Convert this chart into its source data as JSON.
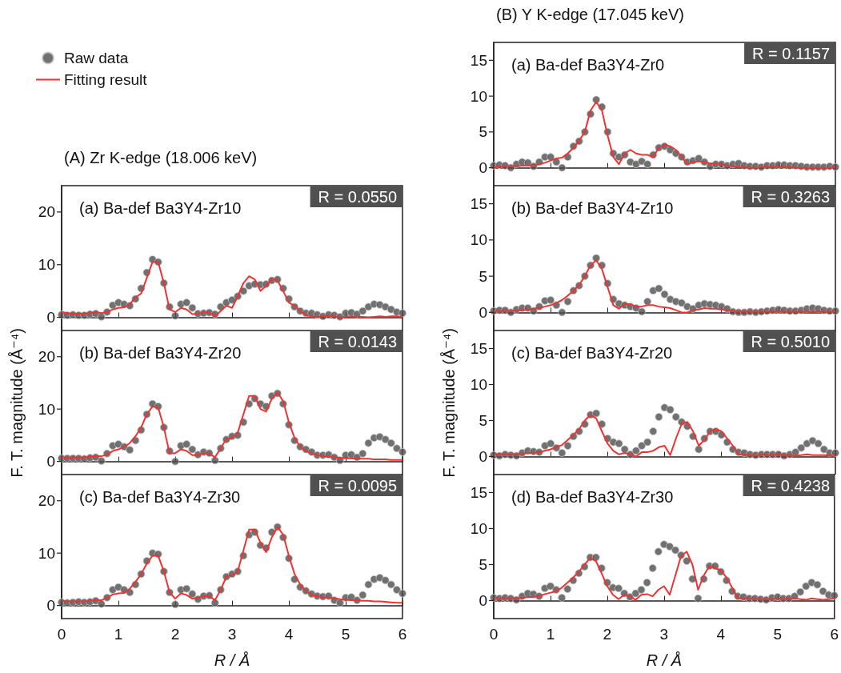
{
  "chart_data": [
    {
      "type": "line",
      "title": "(A) Zr K-edge (18.006 keV)",
      "legend": "top left",
      "tick_labels": "y",
      "annotations": [
        "(a) Ba-def Ba3Y4-Zr10",
        "R = 0.0550"
      ],
      "xlim": [
        0,
        6
      ],
      "xticks": [
        0,
        1,
        2,
        3,
        4,
        5,
        6
      ],
      "ylim": [
        -2.5,
        25
      ],
      "yticks": [
        0,
        10,
        20
      ],
      "x": [
        0,
        0.1,
        0.2,
        0.3,
        0.4,
        0.5,
        0.6,
        0.7,
        0.8,
        0.9,
        1,
        1.1,
        1.2,
        1.3,
        1.4,
        1.5,
        1.6,
        1.7,
        1.8,
        1.9,
        2,
        2.1,
        2.2,
        2.3,
        2.4,
        2.5,
        2.6,
        2.7,
        2.8,
        2.9,
        3,
        3.1,
        3.2,
        3.3,
        3.4,
        3.5,
        3.6,
        3.7,
        3.8,
        3.9,
        4,
        4.1,
        4.2,
        4.3,
        4.4,
        4.5,
        4.6,
        4.7,
        4.8,
        4.9,
        5,
        5.1,
        5.2,
        5.3,
        5.4,
        5.5,
        5.6,
        5.7,
        5.8,
        5.9,
        6
      ],
      "series": [
        {
          "name": "Raw data",
          "type": "scatter",
          "marker": "circle",
          "color": "#4d4d4d",
          "values": [
            0.5,
            0.4,
            0.5,
            0.4,
            0.4,
            0.6,
            0.7,
            0.1,
            1,
            2.3,
            2.8,
            2.5,
            2.2,
            3.5,
            5.5,
            8.5,
            11,
            10.5,
            6.5,
            2,
            0.3,
            2.5,
            2.8,
            1.8,
            0.7,
            0.8,
            0.9,
            0.6,
            2,
            2.8,
            3.3,
            4,
            5,
            6,
            6.3,
            6.2,
            6.3,
            7,
            7.2,
            5.5,
            3.5,
            2,
            1.2,
            0.8,
            0.8,
            0.5,
            0.2,
            0.5,
            0.4,
            0.1,
            0.8,
            0.9,
            0.6,
            1.2,
            2,
            2.5,
            2.4,
            2,
            1.5,
            1,
            0.8
          ]
        },
        {
          "name": "Fitting result",
          "type": "line",
          "color": "#f03232",
          "values": [
            1,
            0.8,
            0.6,
            0.7,
            0.7,
            0.8,
            1,
            0.8,
            1,
            1.5,
            1.8,
            1.9,
            2.5,
            3.8,
            4.5,
            7.5,
            10.5,
            10.5,
            6.5,
            1.5,
            1,
            1.8,
            1.5,
            0.6,
            0.7,
            0.9,
            0.9,
            0.2,
            1.2,
            2.2,
            1.8,
            4,
            6.5,
            7.8,
            7.2,
            5,
            6,
            7.3,
            7,
            5,
            2.8,
            2.2,
            1.2,
            0.4,
            0.2,
            0.1,
            0.2,
            0.3,
            0.2,
            0,
            0.1,
            0.2,
            0.1,
            0.1,
            0,
            0.1,
            0.2,
            0.1,
            0.2,
            0.2,
            0.1
          ]
        }
      ]
    },
    {
      "type": "line",
      "ylabel": "F. T. magnitude (Å⁻⁴)",
      "tick_labels": "y",
      "annotations": [
        "(b) Ba-def Ba3Y4-Zr20",
        "R = 0.0143"
      ],
      "xlim": [
        0,
        6
      ],
      "xticks": [
        0,
        1,
        2,
        3,
        4,
        5,
        6
      ],
      "ylim": [
        -2.5,
        25
      ],
      "yticks": [
        0,
        10,
        20
      ],
      "x": [
        0,
        0.1,
        0.2,
        0.3,
        0.4,
        0.5,
        0.6,
        0.7,
        0.8,
        0.9,
        1,
        1.1,
        1.2,
        1.3,
        1.4,
        1.5,
        1.6,
        1.7,
        1.8,
        1.9,
        2,
        2.1,
        2.2,
        2.3,
        2.4,
        2.5,
        2.6,
        2.7,
        2.8,
        2.9,
        3,
        3.1,
        3.2,
        3.3,
        3.4,
        3.5,
        3.6,
        3.7,
        3.8,
        3.9,
        4,
        4.1,
        4.2,
        4.3,
        4.4,
        4.5,
        4.6,
        4.7,
        4.8,
        4.9,
        5,
        5.1,
        5.2,
        5.3,
        5.4,
        5.5,
        5.6,
        5.7,
        5.8,
        5.9,
        6
      ],
      "series": [
        {
          "type": "scatter",
          "color": "#4d4d4d",
          "marker": "circle",
          "values": [
            0.6,
            0.6,
            0.6,
            0.6,
            0.5,
            0.7,
            0.8,
            0.1,
            1.5,
            3,
            3.3,
            2.8,
            2.2,
            4,
            6,
            9,
            11,
            10.5,
            6.5,
            2,
            0,
            3,
            3.3,
            2.3,
            1.3,
            1.8,
            1.6,
            0.2,
            2.5,
            4.2,
            4.8,
            5,
            7.5,
            11,
            12,
            11,
            10.5,
            12.5,
            13,
            11,
            7,
            4,
            2.8,
            2.3,
            1.8,
            1.2,
            1.2,
            1.3,
            0.8,
            0.2,
            1.2,
            1.3,
            0.8,
            1.5,
            3.5,
            4.5,
            4.7,
            4.2,
            3.5,
            2.5,
            1.8
          ]
        },
        {
          "type": "line",
          "color": "#f03232",
          "values": [
            0.8,
            0.7,
            0.8,
            0.7,
            0.8,
            0.9,
            1,
            1,
            1.3,
            2,
            2.3,
            2.8,
            3.5,
            4.8,
            6.5,
            9,
            10.5,
            10.3,
            6.5,
            1.5,
            1.6,
            2.3,
            2,
            1.2,
            1.2,
            1.6,
            1.5,
            0.8,
            2.5,
            4.3,
            4.5,
            5.5,
            9,
            12.5,
            12.5,
            10,
            9.5,
            12,
            13.2,
            11.5,
            7.5,
            4.5,
            2.8,
            2,
            1.5,
            1.2,
            1,
            0.9,
            0.8,
            0.7,
            0.6,
            0.6,
            0.5,
            0.5,
            0.5,
            0.4,
            0.4,
            0.4,
            0.3,
            0.3,
            0.3
          ]
        }
      ]
    },
    {
      "type": "line",
      "xlabel": "R / Å",
      "annotations": [
        "(c) Ba-def Ba3Y4-Zr30",
        "R = 0.0095"
      ],
      "xlim": [
        0,
        6
      ],
      "xticks": [
        0,
        1,
        2,
        3,
        4,
        5,
        6
      ],
      "ylim": [
        -2.5,
        25
      ],
      "yticks": [
        0,
        10,
        20
      ],
      "x": [
        0,
        0.1,
        0.2,
        0.3,
        0.4,
        0.5,
        0.6,
        0.7,
        0.8,
        0.9,
        1,
        1.1,
        1.2,
        1.3,
        1.4,
        1.5,
        1.6,
        1.7,
        1.8,
        1.9,
        2,
        2.1,
        2.2,
        2.3,
        2.4,
        2.5,
        2.6,
        2.7,
        2.8,
        2.9,
        3,
        3.1,
        3.2,
        3.3,
        3.4,
        3.5,
        3.6,
        3.7,
        3.8,
        3.9,
        4,
        4.1,
        4.2,
        4.3,
        4.4,
        4.5,
        4.6,
        4.7,
        4.8,
        4.9,
        5,
        5.1,
        5.2,
        5.3,
        5.4,
        5.5,
        5.6,
        5.7,
        5.8,
        5.9,
        6
      ],
      "series": [
        {
          "type": "scatter",
          "color": "#4d4d4d",
          "marker": "circle",
          "values": [
            0.6,
            0.5,
            0.6,
            0.7,
            0.6,
            0.7,
            0.9,
            0.3,
            1.5,
            3,
            3.5,
            3,
            2.5,
            4,
            6,
            8.5,
            10,
            9.8,
            6.5,
            2.5,
            0.2,
            3,
            3.2,
            2.2,
            1.2,
            1.8,
            1.9,
            0.5,
            3,
            5.5,
            6,
            6.5,
            9.5,
            13.5,
            14,
            11.5,
            11,
            14,
            15,
            13,
            9,
            5,
            3.5,
            2.8,
            2.2,
            1.8,
            1.7,
            1.8,
            1,
            0.5,
            1.5,
            1.6,
            1,
            2,
            4,
            5,
            5.3,
            4.8,
            4,
            3,
            2.3
          ]
        },
        {
          "type": "line",
          "color": "#f03232",
          "values": [
            0.9,
            0.8,
            0.8,
            0.8,
            0.8,
            0.9,
            1,
            1,
            1.5,
            2.1,
            2.3,
            2.4,
            3.2,
            4.5,
            6,
            8,
            9.5,
            9.5,
            6.5,
            2.5,
            1.3,
            2.3,
            2,
            1.3,
            1.5,
            1.8,
            1.8,
            1,
            3,
            5.5,
            5.8,
            6.5,
            10.5,
            14.5,
            14.5,
            12,
            10.2,
            13,
            15,
            13.5,
            9.5,
            6,
            4,
            2.8,
            2,
            1.8,
            1.6,
            1.5,
            1.4,
            1.2,
            1.1,
            1,
            1,
            0.9,
            0.9,
            0.8,
            0.8,
            0.7,
            0.6,
            0.5,
            0.5
          ]
        }
      ]
    },
    {
      "type": "line",
      "title": "(B) Y K-edge (17.045 keV)",
      "tick_labels": "y",
      "annotations": [
        "(a) Ba-def Ba3Y4-Zr0",
        "R = 0.1157"
      ],
      "xlim": [
        0,
        6
      ],
      "xticks": [
        0,
        1,
        2,
        3,
        4,
        5,
        6
      ],
      "ylim": [
        -2.5,
        17.5
      ],
      "yticks": [
        0,
        5,
        10,
        15
      ],
      "x": [
        0,
        0.1,
        0.2,
        0.3,
        0.4,
        0.5,
        0.6,
        0.7,
        0.8,
        0.9,
        1,
        1.1,
        1.2,
        1.3,
        1.4,
        1.5,
        1.6,
        1.7,
        1.8,
        1.9,
        2,
        2.1,
        2.2,
        2.3,
        2.4,
        2.5,
        2.6,
        2.7,
        2.8,
        2.9,
        3,
        3.1,
        3.2,
        3.3,
        3.4,
        3.5,
        3.6,
        3.7,
        3.8,
        3.9,
        4,
        4.1,
        4.2,
        4.3,
        4.4,
        4.5,
        4.6,
        4.7,
        4.8,
        4.9,
        5,
        5.1,
        5.2,
        5.3,
        5.4,
        5.5,
        5.6,
        5.7,
        5.8,
        5.9,
        6
      ],
      "series": [
        {
          "type": "scatter",
          "color": "#4d4d4d",
          "marker": "circle",
          "values": [
            0.3,
            0.4,
            0.3,
            0,
            0.5,
            0.8,
            0.7,
            0.2,
            0.8,
            1.5,
            1.5,
            0.8,
            0,
            1.5,
            3,
            3.7,
            5,
            7.5,
            9.5,
            8.5,
            5,
            2,
            1.5,
            1.8,
            0.8,
            0.5,
            0.9,
            0.5,
            1.8,
            2.8,
            3,
            2.5,
            2,
            1.5,
            0.8,
            1,
            1.3,
            0.8,
            0.2,
            0.5,
            0.5,
            0.3,
            0.5,
            0.6,
            0.3,
            0.2,
            0.2,
            0.1,
            0.3,
            0.3,
            0.4,
            0.4,
            0.3,
            0.3,
            0.2,
            0.1,
            0.1,
            0.1,
            0.1,
            0.2,
            0.1
          ]
        },
        {
          "type": "line",
          "color": "#f03232",
          "values": [
            0.1,
            0.1,
            0.2,
            0.2,
            0.2,
            0.3,
            0.3,
            0.4,
            0.5,
            0.7,
            1,
            1.3,
            1.4,
            2,
            2.8,
            3.8,
            5,
            8,
            9.2,
            8,
            4.5,
            1.5,
            0.5,
            2,
            2.5,
            2,
            1.8,
            1.8,
            1.5,
            2.8,
            3.2,
            3,
            2.5,
            1.5,
            0.5,
            0.8,
            0.9,
            0.8,
            0.6,
            0.6,
            0.5,
            0.3,
            0.2,
            0.1,
            0.1,
            0,
            0,
            0.1,
            0.1,
            0.1,
            0.1,
            0.1,
            0.1,
            0,
            0,
            0,
            0,
            0,
            0,
            0,
            0.1
          ]
        }
      ]
    },
    {
      "type": "line",
      "tick_labels": "y",
      "annotations": [
        "(b) Ba-def Ba3Y4-Zr10",
        "R = 0.3263"
      ],
      "xlim": [
        0,
        6
      ],
      "xticks": [
        0,
        1,
        2,
        3,
        4,
        5,
        6
      ],
      "ylim": [
        -2.5,
        17.5
      ],
      "yticks": [
        0,
        5,
        10,
        15
      ],
      "x": [
        0,
        0.1,
        0.2,
        0.3,
        0.4,
        0.5,
        0.6,
        0.7,
        0.8,
        0.9,
        1,
        1.1,
        1.2,
        1.3,
        1.4,
        1.5,
        1.6,
        1.7,
        1.8,
        1.9,
        2,
        2.1,
        2.2,
        2.3,
        2.4,
        2.5,
        2.6,
        2.7,
        2.8,
        2.9,
        3,
        3.1,
        3.2,
        3.3,
        3.4,
        3.5,
        3.6,
        3.7,
        3.8,
        3.9,
        4,
        4.1,
        4.2,
        4.3,
        4.4,
        4.5,
        4.6,
        4.7,
        4.8,
        4.9,
        5,
        5.1,
        5.2,
        5.3,
        5.4,
        5.5,
        5.6,
        5.7,
        5.8,
        5.9,
        6
      ],
      "series": [
        {
          "type": "scatter",
          "color": "#4d4d4d",
          "marker": "circle",
          "values": [
            0.2,
            0.3,
            0.3,
            0,
            0.4,
            0.6,
            0.6,
            0.2,
            0.8,
            1.6,
            1.7,
            1,
            0,
            1.5,
            3,
            3.7,
            5,
            6.5,
            7.5,
            6.5,
            4,
            1.8,
            1.2,
            1,
            0.8,
            0.6,
            0.1,
            1.5,
            3,
            3.3,
            2.5,
            1.8,
            1.5,
            1.3,
            0.8,
            0.5,
            1,
            1.2,
            1.1,
            1,
            0.8,
            0.5,
            0.1,
            0,
            0,
            0.1,
            0,
            0.1,
            0.2,
            0.3,
            0.4,
            0.3,
            0.2,
            0.2,
            0.3,
            0.5,
            0.6,
            0.5,
            0.3,
            0.2,
            0.2
          ]
        },
        {
          "type": "line",
          "color": "#f03232",
          "values": [
            0.2,
            0.1,
            0.2,
            0.2,
            0.3,
            0.3,
            0.4,
            0.5,
            0.6,
            0.8,
            1,
            1.3,
            1.7,
            2.3,
            3,
            3.8,
            5,
            6.5,
            7.2,
            6,
            3.5,
            1,
            0.5,
            1.2,
            1.1,
            0.8,
            0.8,
            1,
            1,
            0.8,
            0.7,
            0.6,
            0.3,
            0,
            0,
            0.3,
            0.4,
            0.6,
            0.5,
            0.5,
            0.4,
            0.3,
            0.2,
            0.1,
            0.1,
            0.1,
            0.1,
            0.1,
            0.1,
            0.1,
            0.1,
            0.1,
            0.1,
            0.1,
            0.1,
            0.1,
            0.1,
            0.1,
            0.1,
            0.1,
            0.1
          ]
        }
      ]
    },
    {
      "type": "line",
      "ylabel": "F. T. magnitude (Å⁻⁴)",
      "tick_labels": "y",
      "annotations": [
        "(c) Ba-def Ba3Y4-Zr20",
        "R = 0.5010"
      ],
      "xlim": [
        0,
        6
      ],
      "xticks": [
        0,
        1,
        2,
        3,
        4,
        5,
        6
      ],
      "ylim": [
        -2.5,
        17.5
      ],
      "yticks": [
        0,
        5,
        10,
        15
      ],
      "x": [
        0,
        0.1,
        0.2,
        0.3,
        0.4,
        0.5,
        0.6,
        0.7,
        0.8,
        0.9,
        1,
        1.1,
        1.2,
        1.3,
        1.4,
        1.5,
        1.6,
        1.7,
        1.8,
        1.9,
        2,
        2.1,
        2.2,
        2.3,
        2.4,
        2.5,
        2.6,
        2.7,
        2.8,
        2.9,
        3,
        3.1,
        3.2,
        3.3,
        3.4,
        3.5,
        3.6,
        3.7,
        3.8,
        3.9,
        4,
        4.1,
        4.2,
        4.3,
        4.4,
        4.5,
        4.6,
        4.7,
        4.8,
        4.9,
        5,
        5.1,
        5.2,
        5.3,
        5.4,
        5.5,
        5.6,
        5.7,
        5.8,
        5.9,
        6
      ],
      "series": [
        {
          "type": "scatter",
          "color": "#4d4d4d",
          "marker": "circle",
          "values": [
            0.2,
            0.1,
            0.3,
            0.2,
            0.1,
            0.5,
            0.8,
            0.7,
            0.6,
            1.5,
            1.8,
            1.2,
            0.5,
            1.5,
            2.8,
            3.5,
            4.5,
            5.8,
            6,
            4.5,
            2.5,
            2,
            1.8,
            1,
            0.3,
            0.8,
            1.5,
            2,
            3.5,
            5.5,
            6.8,
            6.5,
            5.5,
            4.8,
            4.2,
            2.8,
            1,
            2.5,
            3.5,
            3.5,
            3,
            2,
            1,
            0.6,
            0.5,
            0.3,
            0.2,
            0.3,
            0.3,
            0.3,
            0.3,
            0.1,
            0.3,
            0.6,
            1.2,
            1.8,
            2.2,
            1.8,
            1,
            0.5,
            0.5
          ]
        },
        {
          "type": "line",
          "color": "#f03232",
          "values": [
            0.3,
            0.3,
            0.3,
            0.3,
            0.3,
            0.4,
            0.5,
            0.5,
            0.6,
            0.8,
            1,
            1.3,
            1.6,
            2.3,
            3,
            3.8,
            5,
            5.8,
            5.3,
            3.5,
            1.8,
            0.8,
            0.3,
            0.5,
            0.3,
            0,
            0.6,
            0.6,
            0.8,
            1.3,
            1.5,
            0.2,
            2.5,
            4.5,
            4.8,
            3.5,
            1.5,
            2.3,
            3.5,
            3.8,
            3.5,
            2.5,
            1.5,
            0.3,
            0.2,
            0.2,
            0.1,
            0.3,
            0.2,
            0.2,
            0.3,
            0.2,
            0.1,
            0.1,
            0.2,
            0.3,
            0.2,
            0.2,
            0.2,
            0.1,
            0.1
          ]
        }
      ]
    },
    {
      "type": "line",
      "xlabel": "R / Å",
      "annotations": [
        "(d) Ba-def Ba3Y4-Zr30",
        "R = 0.4238"
      ],
      "xlim": [
        0,
        6
      ],
      "xticks": [
        0,
        1,
        2,
        3,
        4,
        5,
        6
      ],
      "ylim": [
        -2.5,
        17.5
      ],
      "yticks": [
        0,
        5,
        10,
        15
      ],
      "x": [
        0,
        0.1,
        0.2,
        0.3,
        0.4,
        0.5,
        0.6,
        0.7,
        0.8,
        0.9,
        1,
        1.1,
        1.2,
        1.3,
        1.4,
        1.5,
        1.6,
        1.7,
        1.8,
        1.9,
        2,
        2.1,
        2.2,
        2.3,
        2.4,
        2.5,
        2.6,
        2.7,
        2.8,
        2.9,
        3,
        3.1,
        3.2,
        3.3,
        3.4,
        3.5,
        3.6,
        3.7,
        3.8,
        3.9,
        4,
        4.1,
        4.2,
        4.3,
        4.4,
        4.5,
        4.6,
        4.7,
        4.8,
        4.9,
        5,
        5.1,
        5.2,
        5.3,
        5.4,
        5.5,
        5.6,
        5.7,
        5.8,
        5.9,
        6
      ],
      "series": [
        {
          "type": "scatter",
          "color": "#4d4d4d",
          "marker": "circle",
          "values": [
            0.4,
            0.3,
            0.4,
            0.3,
            0.1,
            0.6,
            1,
            0.9,
            0.6,
            1.7,
            2,
            1.5,
            0.4,
            1.6,
            2.8,
            3.8,
            4.7,
            6,
            6,
            4.5,
            2.5,
            1.8,
            1.7,
            1,
            0.5,
            1,
            1.5,
            2.5,
            4.5,
            6.8,
            7.8,
            7.5,
            7,
            6.3,
            5.5,
            3,
            0.3,
            3,
            4.8,
            4.8,
            4,
            2.8,
            1.3,
            0.6,
            0.5,
            0.3,
            0.3,
            0.2,
            0.1,
            0.4,
            0.5,
            0.3,
            0.3,
            0.6,
            1.2,
            2,
            2.5,
            2.2,
            1.3,
            0.8,
            0.7
          ]
        },
        {
          "type": "line",
          "color": "#f03232",
          "values": [
            0.3,
            0.3,
            0.3,
            0.3,
            0.3,
            0.4,
            0.5,
            0.5,
            0.6,
            0.9,
            1.1,
            1.3,
            1.8,
            2.5,
            3.2,
            4,
            5,
            5.9,
            5.5,
            3.8,
            2,
            0.8,
            0.2,
            0.8,
            0.6,
            0.1,
            0.8,
            0.9,
            0.6,
            1.5,
            2,
            0.8,
            3.5,
            6.2,
            6.8,
            5,
            1.5,
            3.5,
            4.8,
            4.5,
            4.2,
            3.2,
            1.8,
            0.3,
            0.3,
            0.3,
            0.3,
            0.1,
            0.2,
            0.2,
            0.3,
            0.2,
            0.3,
            0.3,
            0.2,
            0.1,
            0.3,
            0.2,
            0.1,
            0.2,
            0.3
          ]
        }
      ]
    }
  ]
}
